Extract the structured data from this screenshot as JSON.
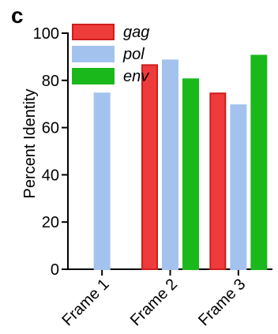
{
  "panel_letter": "c",
  "chart_data": {
    "type": "bar",
    "categories": [
      "Frame 1",
      "Frame 2",
      "Frame 3"
    ],
    "series": [
      {
        "name": "gag",
        "values": [
          null,
          86.5,
          74.5
        ],
        "color": "#ee3b3b",
        "edge": "#d01c1c"
      },
      {
        "name": "pol",
        "values": [
          74.5,
          88.5,
          69.5
        ],
        "color": "#a3c3ee",
        "edge": "#a3c3ee"
      },
      {
        "name": "env",
        "values": [
          null,
          80.5,
          90.5
        ],
        "color": "#1bb81b",
        "edge": "#1bb81b"
      }
    ],
    "ylabel": "Percent Identity",
    "xlabel": "",
    "ylim": [
      0,
      100
    ],
    "yticks": [
      0,
      20,
      40,
      60,
      80,
      100
    ],
    "legend_position": "top-left",
    "grid": false
  }
}
